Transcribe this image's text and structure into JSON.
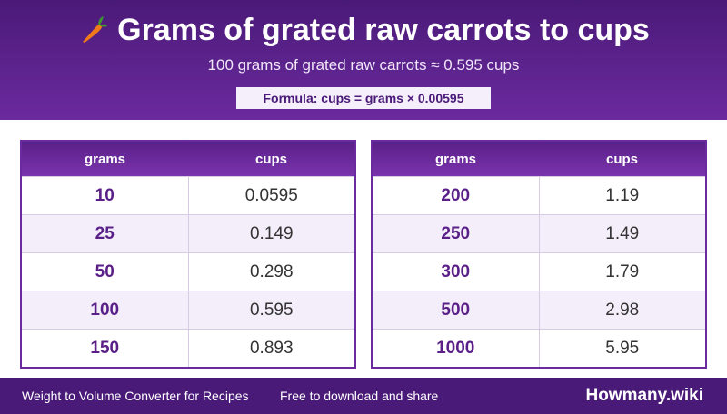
{
  "header": {
    "title": "Grams of grated raw carrots to cups",
    "subtitle": "100 grams of grated raw carrots ≈ 0.595 cups",
    "formula": "Formula: cups = grams × 0.00595"
  },
  "tables": [
    {
      "columns": [
        "grams",
        "cups"
      ],
      "rows": [
        [
          "10",
          "0.0595"
        ],
        [
          "25",
          "0.149"
        ],
        [
          "50",
          "0.298"
        ],
        [
          "100",
          "0.595"
        ],
        [
          "150",
          "0.893"
        ]
      ]
    },
    {
      "columns": [
        "grams",
        "cups"
      ],
      "rows": [
        [
          "200",
          "1.19"
        ],
        [
          "250",
          "1.49"
        ],
        [
          "300",
          "1.79"
        ],
        [
          "500",
          "2.98"
        ],
        [
          "1000",
          "5.95"
        ]
      ]
    }
  ],
  "footer": {
    "left": "Weight to Volume Converter for Recipes",
    "middle": "Free to download and share",
    "brand": "Howmany.wiki"
  }
}
